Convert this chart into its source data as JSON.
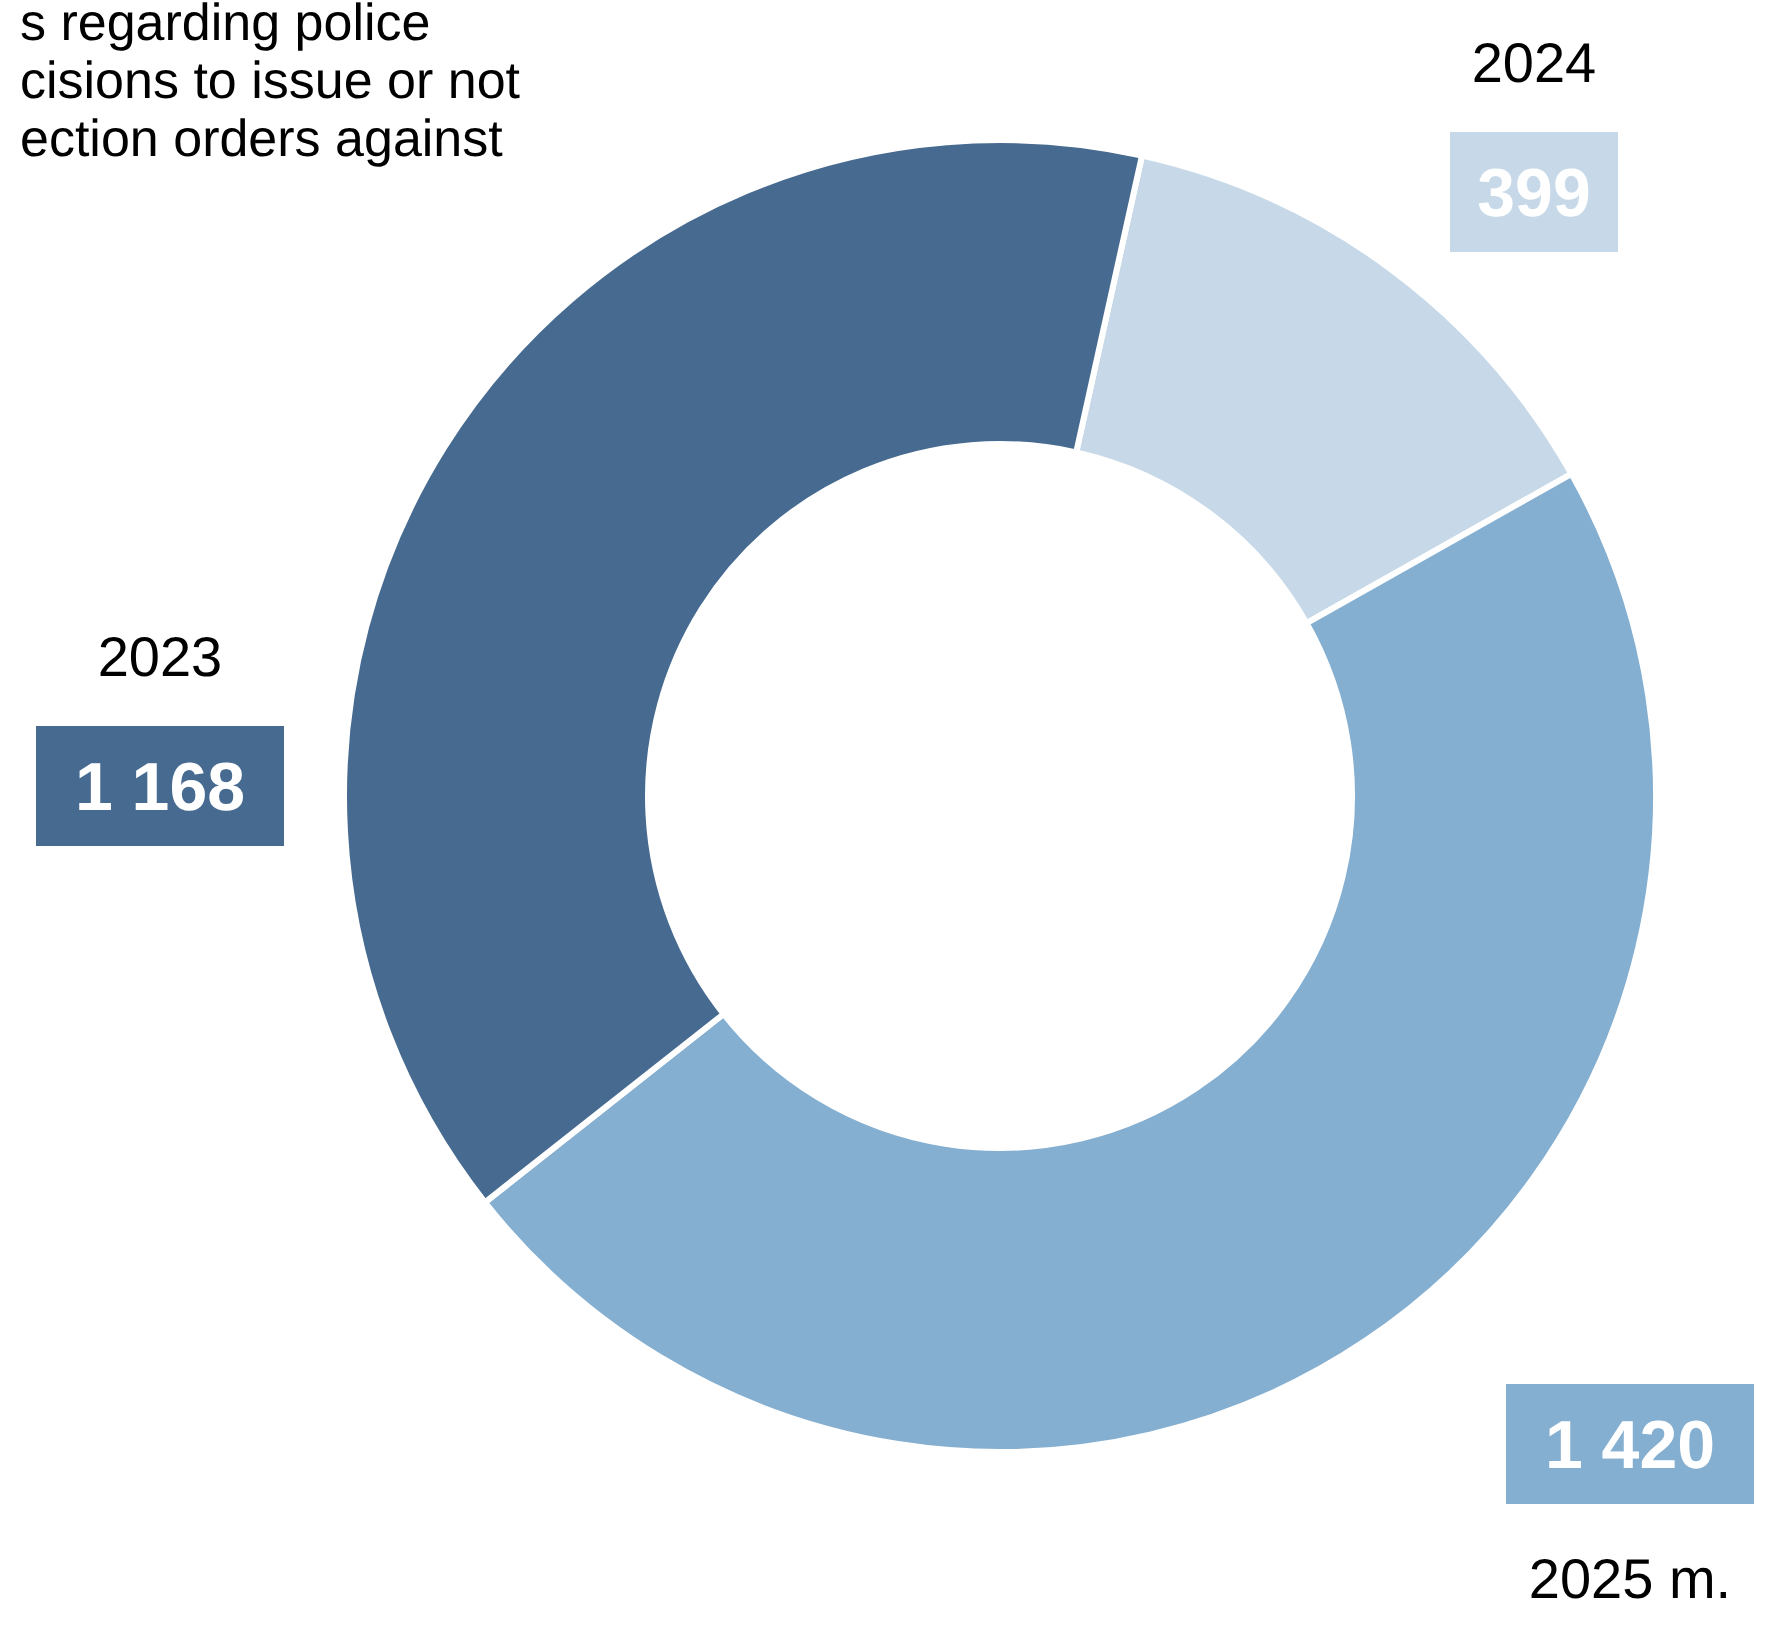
{
  "chart_data": {
    "type": "donut",
    "title": "s regarding police\ncisions to issue or not\nection orders against",
    "categories": [
      "2024",
      "2025 m.",
      "2023"
    ],
    "values": [
      399,
      1420,
      1168
    ],
    "value_labels": [
      "399",
      "1 420",
      "1 168"
    ],
    "colors": [
      "#c7d9e8",
      "#85afd1",
      "#476a91"
    ]
  }
}
